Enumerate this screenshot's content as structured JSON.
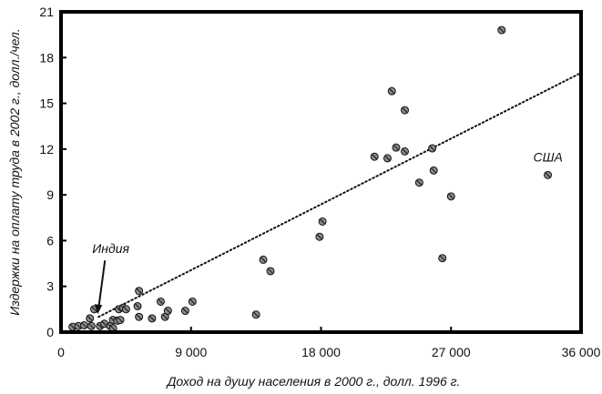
{
  "chart_data": {
    "type": "scatter",
    "title": "",
    "xlabel": "Доход на душу населения в 2000 г., долл. 1996 г.",
    "ylabel": "Издержки на оплату труда в 2002 г., долл./чел.",
    "xlim": [
      0,
      36000
    ],
    "ylim": [
      0,
      21
    ],
    "xticks": [
      0,
      9000,
      18000,
      27000,
      36000
    ],
    "xtick_labels": [
      "0",
      "9 000",
      "18 000",
      "27 000",
      "36 000"
    ],
    "yticks": [
      0,
      3,
      6,
      9,
      12,
      15,
      18,
      21
    ],
    "ytick_labels": [
      "0",
      "3",
      "6",
      "9",
      "12",
      "15",
      "18",
      "21"
    ],
    "grid": false,
    "legend": false,
    "series": [
      {
        "points": [
          [
            800,
            0.35
          ],
          [
            1200,
            0.4
          ],
          [
            1600,
            0.45
          ],
          [
            2000,
            0.9
          ],
          [
            2100,
            0.4
          ],
          [
            2700,
            0.4
          ],
          [
            2300,
            1.5
          ],
          [
            3000,
            0.55
          ],
          [
            3400,
            0.4
          ],
          [
            3600,
            0.25
          ],
          [
            3600,
            0.8
          ],
          [
            3900,
            0.75
          ],
          [
            4000,
            1.5
          ],
          [
            4100,
            0.8
          ],
          [
            4300,
            1.6
          ],
          [
            4500,
            1.5
          ],
          [
            5300,
            1.7
          ],
          [
            5400,
            1.0
          ],
          [
            5400,
            2.7
          ],
          [
            6300,
            0.9
          ],
          [
            6900,
            2.0
          ],
          [
            7200,
            1.0
          ],
          [
            7400,
            1.4
          ],
          [
            8600,
            1.4
          ],
          [
            9100,
            2.0
          ],
          [
            13500,
            1.15
          ],
          [
            14000,
            4.75
          ],
          [
            14500,
            4.0
          ],
          [
            17900,
            6.25
          ],
          [
            18100,
            7.25
          ],
          [
            21700,
            11.5
          ],
          [
            22600,
            11.4
          ],
          [
            22900,
            15.8
          ],
          [
            23200,
            12.1
          ],
          [
            23800,
            14.55
          ],
          [
            23800,
            11.85
          ],
          [
            24800,
            9.8
          ],
          [
            25700,
            12.05
          ],
          [
            25800,
            10.6
          ],
          [
            26400,
            4.85
          ],
          [
            27000,
            8.9
          ],
          [
            30500,
            19.8
          ],
          [
            33700,
            10.3
          ]
        ]
      }
    ],
    "trendline": {
      "style": "dotted",
      "x": [
        2600,
        36000
      ],
      "y": [
        1.0,
        17.0
      ]
    },
    "annotations": [
      {
        "text": "США",
        "x": 33700,
        "y": 10.3
      },
      {
        "text": "Индия",
        "x": 2600,
        "y": 1.0
      }
    ]
  }
}
